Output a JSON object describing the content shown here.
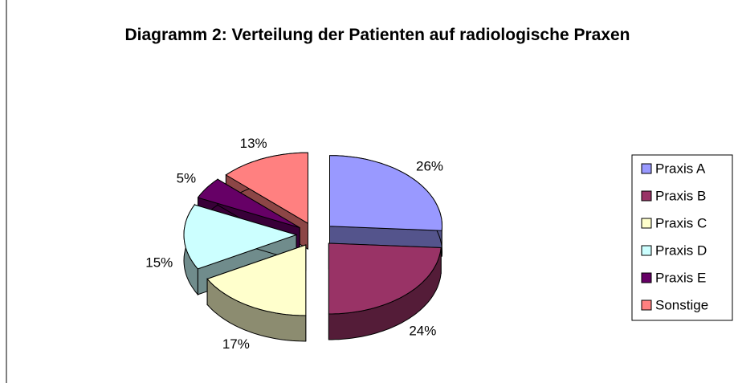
{
  "chart_data": {
    "type": "pie",
    "title": "Diagramm 2: Verteilung der Patienten auf radiologische Praxen",
    "categories": [
      "Praxis A",
      "Praxis B",
      "Praxis C",
      "Praxis D",
      "Praxis E",
      "Sonstige"
    ],
    "values": [
      26,
      24,
      17,
      15,
      5,
      13
    ],
    "value_labels": [
      "26%",
      "24%",
      "17%",
      "15%",
      "5%",
      "13%"
    ],
    "colors": [
      "#9999ff",
      "#993366",
      "#ffffcc",
      "#ccffff",
      "#660066",
      "#ff8080"
    ],
    "legend": "right"
  }
}
